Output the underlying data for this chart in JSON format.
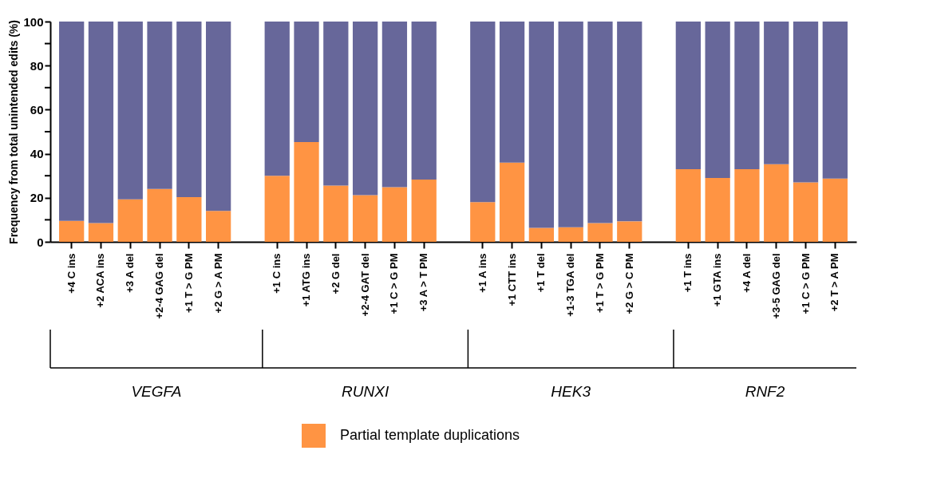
{
  "chart_data": {
    "type": "bar",
    "stacked": true,
    "ylabel": "Frequency from total unintended edits (%)",
    "categories": [
      "+4 C ins",
      "+2 ACA ins",
      "+3 A del",
      "+2-4 GAG del",
      "+1 T > G PM",
      "+2 G > A PM",
      "+1 C ins",
      "+1 ATG ins",
      "+2 G del",
      "+2-4 GAT del",
      "+1 C > G PM",
      "+3 A > T PM",
      "+1 A ins",
      "+1 CTT ins",
      "+1 T del",
      "+1-3 TGA del",
      "+1 T > G PM",
      "+2 G > C PM",
      "+1 T ins",
      "+1 GTA ins",
      "+4 A del",
      "+3-5 GAG del",
      "+1 C > G PM",
      "+2 T > A PM"
    ],
    "series": [
      {
        "name": "Partial template duplications",
        "color": "#ff9443",
        "values": [
          9.5,
          8.5,
          19.3,
          24,
          20.3,
          14,
          30,
          45.3,
          25.5,
          21.2,
          24.8,
          28.3,
          18,
          36,
          6.3,
          6.6,
          8.5,
          9.3,
          33,
          29,
          33,
          35.2,
          27,
          28.7
        ]
      },
      {
        "color": "#67679a",
        "values": [
          90.5,
          91.5,
          80.7,
          76,
          79.7,
          86,
          70,
          54.7,
          74.5,
          78.8,
          75.2,
          71.7,
          82,
          64,
          93.7,
          93.4,
          91.5,
          90.7,
          67,
          71,
          67,
          64.8,
          73,
          71.3
        ]
      }
    ],
    "ylim": [
      0,
      100
    ],
    "yticks": [
      0,
      {
        "value": 10,
        "label": null
      },
      20,
      {
        "value": 30,
        "label": null
      },
      40,
      {
        "value": 50,
        "label": null
      },
      60,
      {
        "value": 70,
        "label": null
      },
      80,
      {
        "value": 90,
        "label": null
      },
      100
    ],
    "annotations": [
      "VEGFA",
      "RUNXI",
      "HEK3",
      "RNF2"
    ],
    "legend": "bottom",
    "grid": false
  }
}
